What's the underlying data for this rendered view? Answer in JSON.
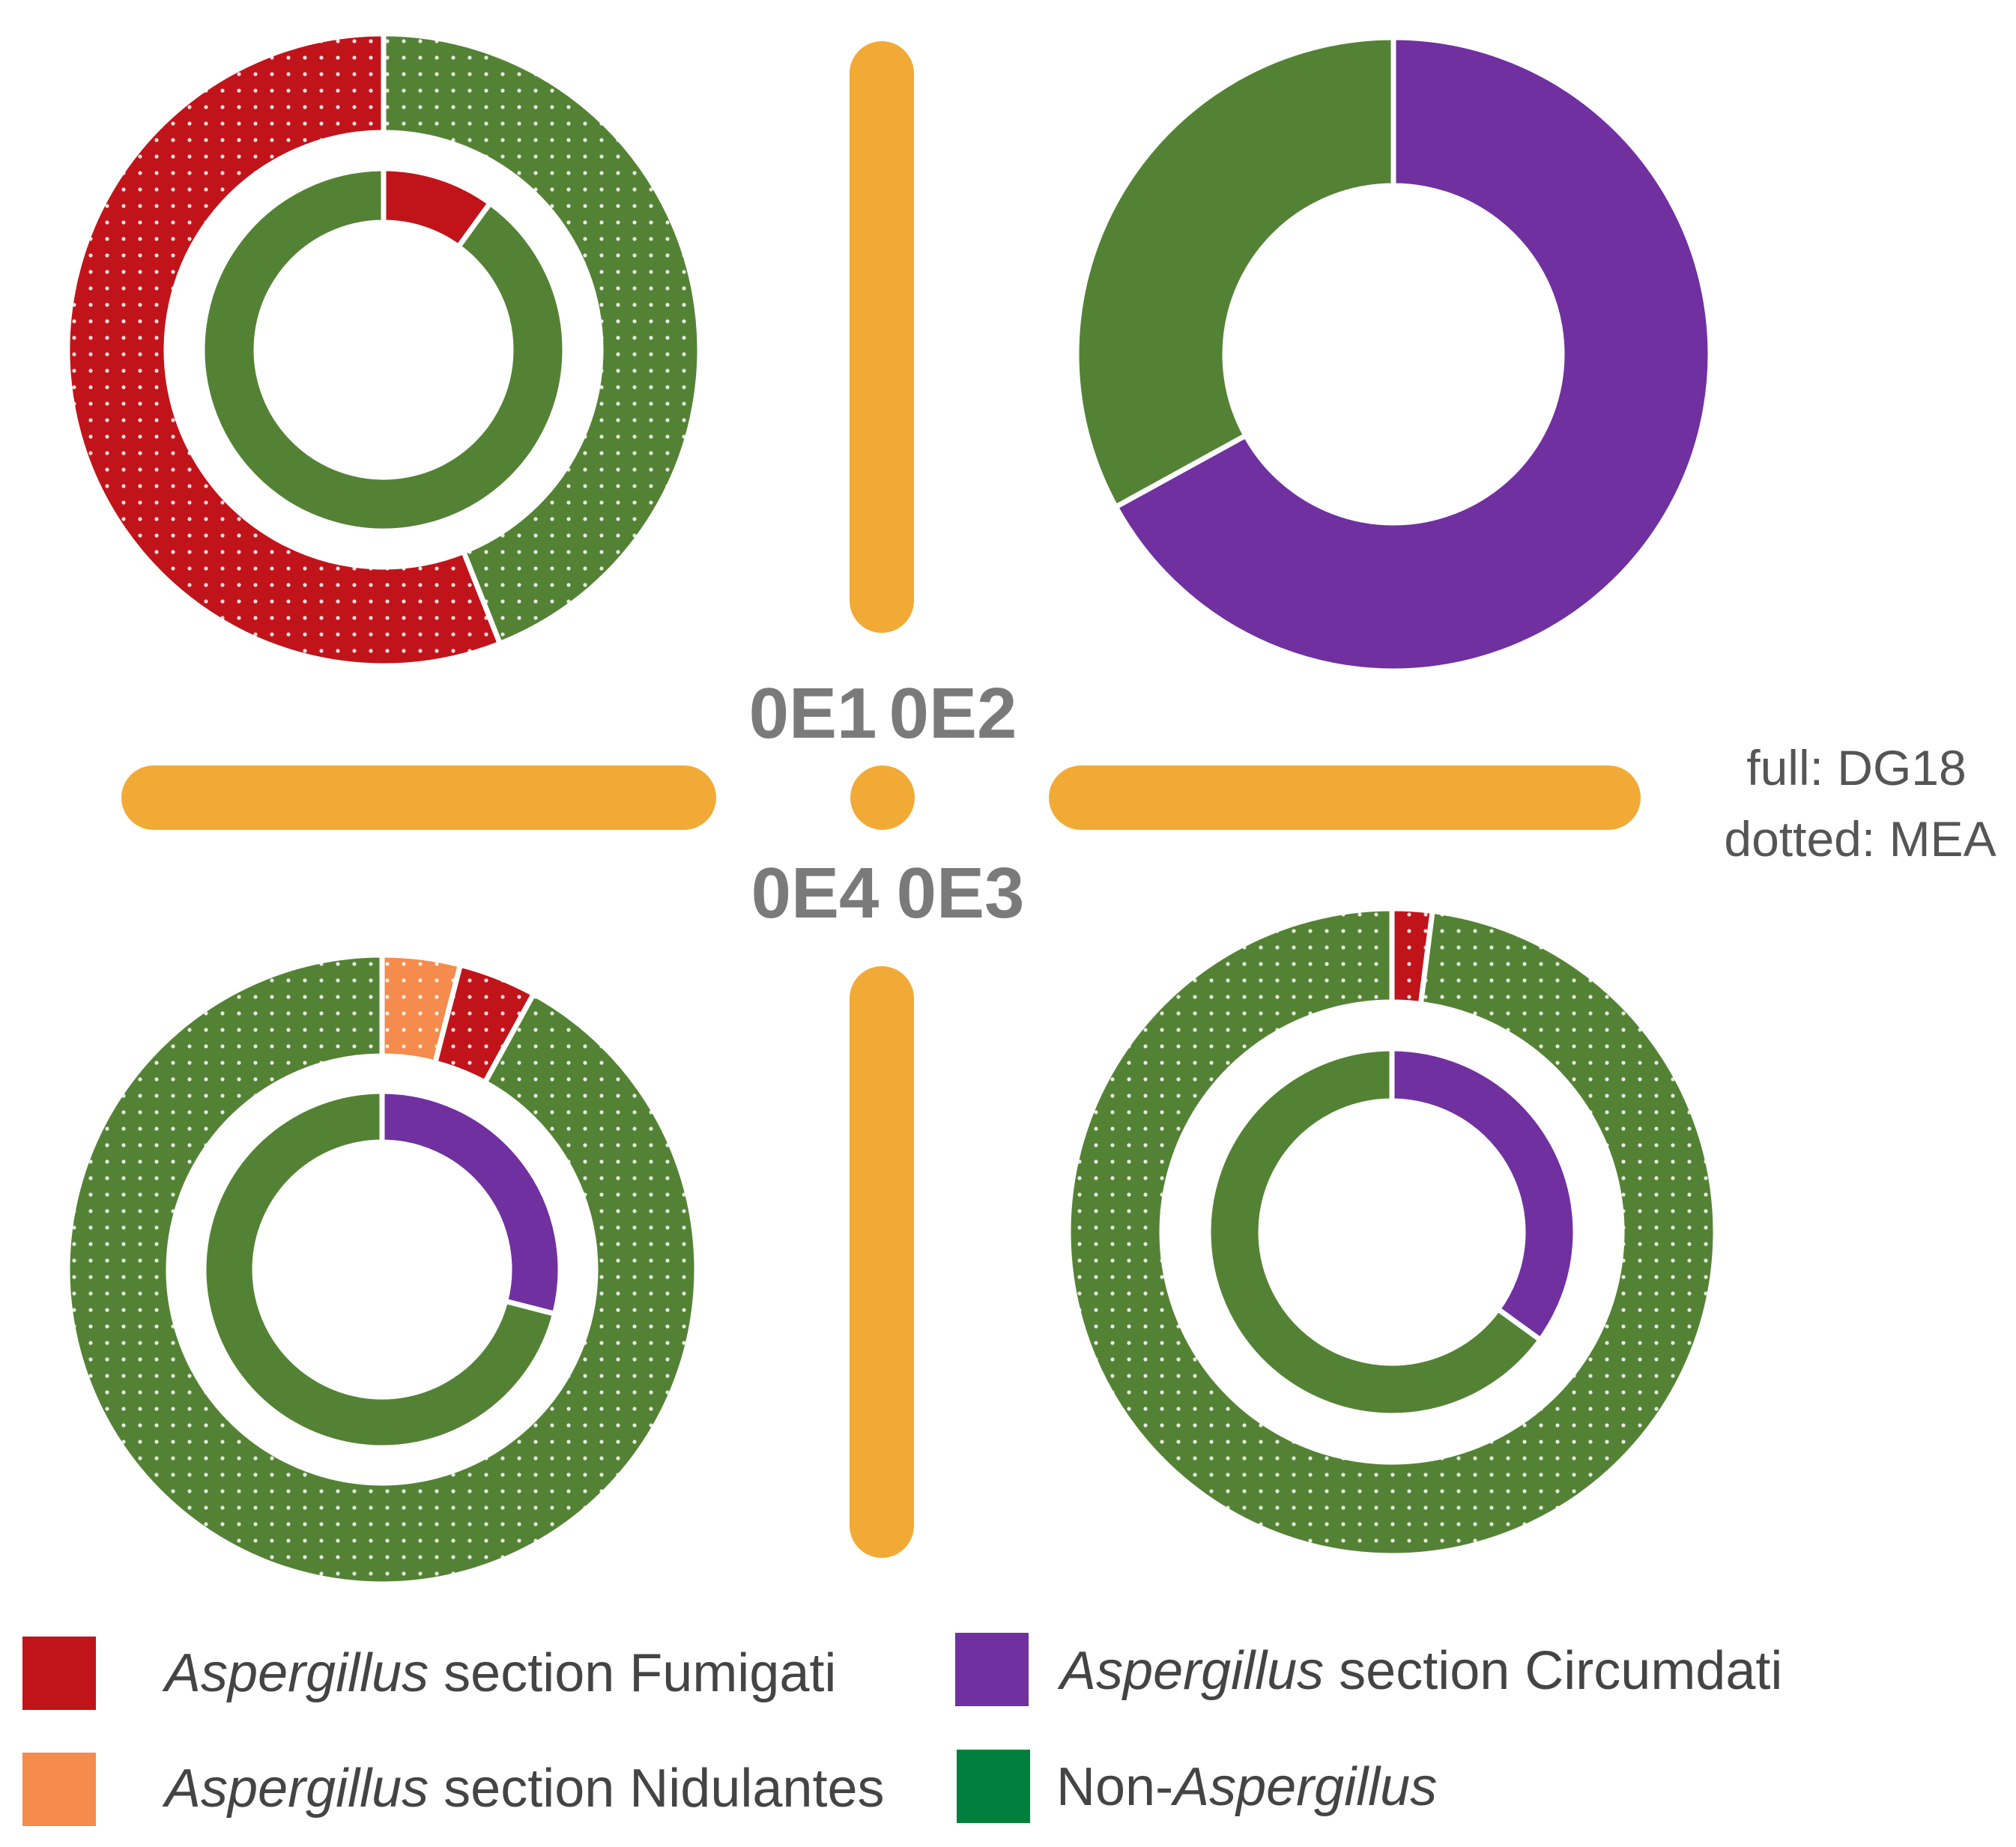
{
  "colors": {
    "fumigati": "#c0141a",
    "nidulantes": "#f58b4c",
    "circumdati": "#7030a0",
    "non_aspergillus": "#548235",
    "legend_non_aspergillus": "#00803c",
    "road": "#f2aa36"
  },
  "sites": [
    "0E1",
    "0E2",
    "0E3",
    "0E4"
  ],
  "note": {
    "line1": "full: DG18",
    "line2": "dotted: MEA"
  },
  "legend": [
    {
      "italic": "Aspergillus",
      "rest": " section Fumigati",
      "color_key": "fumigati"
    },
    {
      "italic": "Aspergillus",
      "rest": " section Circumdati",
      "color_key": "circumdati"
    },
    {
      "italic": "Aspergillus",
      "rest": " section Nidulantes",
      "color_key": "nidulantes"
    },
    {
      "prefix": "Non-",
      "italic": "Aspergillus",
      "color_key": "non_aspergillus"
    }
  ],
  "chart_data": [
    {
      "type": "pie",
      "site": "0E1",
      "rings": [
        {
          "medium": "MEA",
          "pattern": "dotted",
          "slices": [
            {
              "category": "non_aspergillus",
              "value": 44
            },
            {
              "category": "fumigati",
              "value": 56
            }
          ]
        },
        {
          "medium": "DG18",
          "pattern": "full",
          "slices": [
            {
              "category": "fumigati",
              "value": 10
            },
            {
              "category": "non_aspergillus",
              "value": 90
            }
          ]
        }
      ]
    },
    {
      "type": "pie",
      "site": "0E2",
      "rings": [
        {
          "medium": "DG18",
          "pattern": "full",
          "slices": [
            {
              "category": "circumdati",
              "value": 67
            },
            {
              "category": "non_aspergillus",
              "value": 33
            }
          ]
        }
      ]
    },
    {
      "type": "pie",
      "site": "0E3",
      "rings": [
        {
          "medium": "MEA",
          "pattern": "dotted",
          "slices": [
            {
              "category": "fumigati",
              "value": 2
            },
            {
              "category": "non_aspergillus",
              "value": 98
            }
          ]
        },
        {
          "medium": "DG18",
          "pattern": "full",
          "slices": [
            {
              "category": "circumdati",
              "value": 35
            },
            {
              "category": "non_aspergillus",
              "value": 65
            }
          ]
        }
      ]
    },
    {
      "type": "pie",
      "site": "0E4",
      "rings": [
        {
          "medium": "MEA",
          "pattern": "dotted",
          "slices": [
            {
              "category": "nidulantes",
              "value": 4
            },
            {
              "category": "fumigati",
              "value": 4
            },
            {
              "category": "non_aspergillus",
              "value": 92
            }
          ]
        },
        {
          "medium": "DG18",
          "pattern": "full",
          "slices": [
            {
              "category": "circumdati",
              "value": 29
            },
            {
              "category": "non_aspergillus",
              "value": 71
            }
          ]
        }
      ]
    }
  ]
}
